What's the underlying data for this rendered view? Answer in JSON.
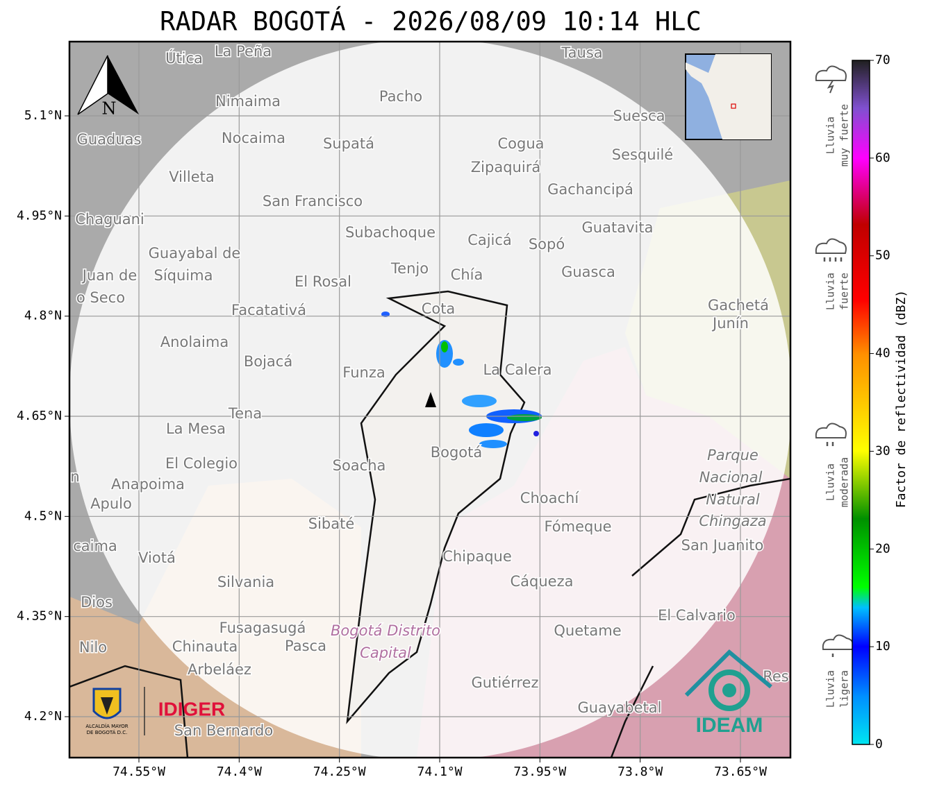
{
  "map": {
    "title": "RADAR BOGOTÁ - 2026/08/09 10:14 HLC",
    "lat_ticks": [
      {
        "value": 5.1,
        "label": "5.1°N"
      },
      {
        "value": 4.95,
        "label": "4.95°N"
      },
      {
        "value": 4.8,
        "label": "4.8°N"
      },
      {
        "value": 4.65,
        "label": "4.65°N"
      },
      {
        "value": 4.5,
        "label": "4.5°N"
      },
      {
        "value": 4.35,
        "label": "4.35°N"
      },
      {
        "value": 4.2,
        "label": "4.2°N"
      }
    ],
    "lon_ticks": [
      {
        "value": -74.55,
        "label": "74.55°W"
      },
      {
        "value": -74.4,
        "label": "74.4°W"
      },
      {
        "value": -74.25,
        "label": "74.25°W"
      },
      {
        "value": -74.1,
        "label": "74.1°W"
      },
      {
        "value": -73.95,
        "label": "73.95°W"
      },
      {
        "value": -73.8,
        "label": "73.8°W"
      },
      {
        "value": -73.65,
        "label": "73.65°W"
      }
    ],
    "north_label": "N",
    "places": [
      "Útica",
      "La Peña",
      "Tausa",
      "Pacho",
      "Nimaima",
      "Guaduas",
      "Nocaima",
      "Supatá",
      "Cogua",
      "Suesca",
      "Sesquilé",
      "Zipaquirá",
      "Villeta",
      "Gachancipá",
      "San Francisco",
      "Chaguani",
      "Guatavita",
      "Subachoque",
      "Cajicá",
      "Sopó",
      "Guayabal de",
      "Síquima",
      "Juan de",
      "o Seco",
      "Tenjo",
      "Chía",
      "Guasca",
      "El Rosal",
      "Gachetá",
      "Junín",
      "Facatativá",
      "Cota",
      "Anolaima",
      "Bojacá",
      "Funza",
      "La Calera",
      "Tena",
      "La Mesa",
      "Parque",
      "Nacional",
      "Natural",
      "Chingaza",
      "El Colegio",
      "Soacha",
      "Bogotá",
      "Anapoima",
      "Apulo",
      "Choachí",
      "Fómeque",
      "Sibaté",
      "San Juanito",
      "caima",
      "Viotá",
      "Chipaque",
      "Silvania",
      "Cáqueza",
      "Dios",
      "El Calvario",
      "Fusagasugá",
      "Bogotá Distrito",
      "Capital",
      "Quetame",
      "Nilo",
      "Chinauta",
      "Pasca",
      "Arbeláez",
      "Res",
      "Gutiérrez",
      "Guayabetal",
      "San Bernardo",
      "n"
    ],
    "logos": {
      "alcaldia": [
        "ALCALDÍA MAYOR",
        "DE BOGOTÁ D.C."
      ],
      "idiger": "IDIGER",
      "ideam": "IDEAM"
    },
    "colorbar": {
      "label": "Factor de reflectividad (dBZ)",
      "lim": [
        0,
        70
      ],
      "ticks": [
        0,
        10,
        20,
        30,
        40,
        50,
        60,
        70
      ]
    },
    "rain_levels": [
      [
        "Lluvia",
        "muy fuerte"
      ],
      [
        "Lluvia",
        "fuerte"
      ],
      [
        "Lluvia",
        "moderada"
      ],
      [
        "Lluvia",
        "ligera"
      ]
    ]
  }
}
